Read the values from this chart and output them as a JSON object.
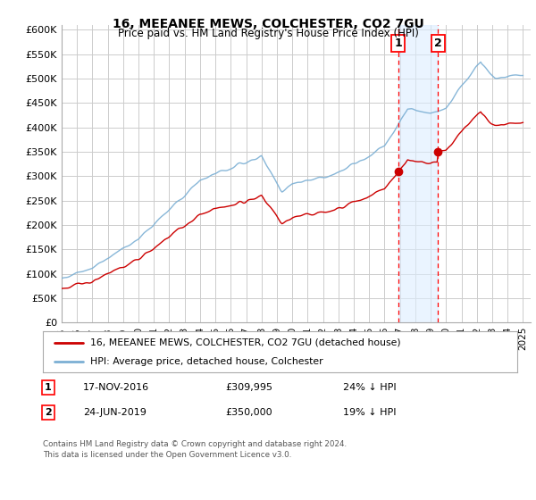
{
  "title": "16, MEEANEE MEWS, COLCHESTER, CO2 7GU",
  "subtitle": "Price paid vs. HM Land Registry's House Price Index (HPI)",
  "ylabel_ticks": [
    "£0",
    "£50K",
    "£100K",
    "£150K",
    "£200K",
    "£250K",
    "£300K",
    "£350K",
    "£400K",
    "£450K",
    "£500K",
    "£550K",
    "£600K"
  ],
  "ytick_values": [
    0,
    50000,
    100000,
    150000,
    200000,
    250000,
    300000,
    350000,
    400000,
    450000,
    500000,
    550000,
    600000
  ],
  "ylim": [
    0,
    610000
  ],
  "xlim_start": 1995.0,
  "xlim_end": 2025.5,
  "hpi_color": "#7bafd4",
  "price_color": "#cc0000",
  "purchase1_date": 2016.88,
  "purchase1_price": 309995,
  "purchase2_date": 2019.48,
  "purchase2_price": 350000,
  "legend_line1": "16, MEEANEE MEWS, COLCHESTER, CO2 7GU (detached house)",
  "legend_line2": "HPI: Average price, detached house, Colchester",
  "note1_date": "17-NOV-2016",
  "note1_price": "£309,995",
  "note1_pct": "24% ↓ HPI",
  "note2_date": "24-JUN-2019",
  "note2_price": "£350,000",
  "note2_pct": "19% ↓ HPI",
  "footer": "Contains HM Land Registry data © Crown copyright and database right 2024.\nThis data is licensed under the Open Government Licence v3.0.",
  "bg_color": "#ffffff",
  "grid_color": "#cccccc",
  "shade_color": "#ddeeff"
}
